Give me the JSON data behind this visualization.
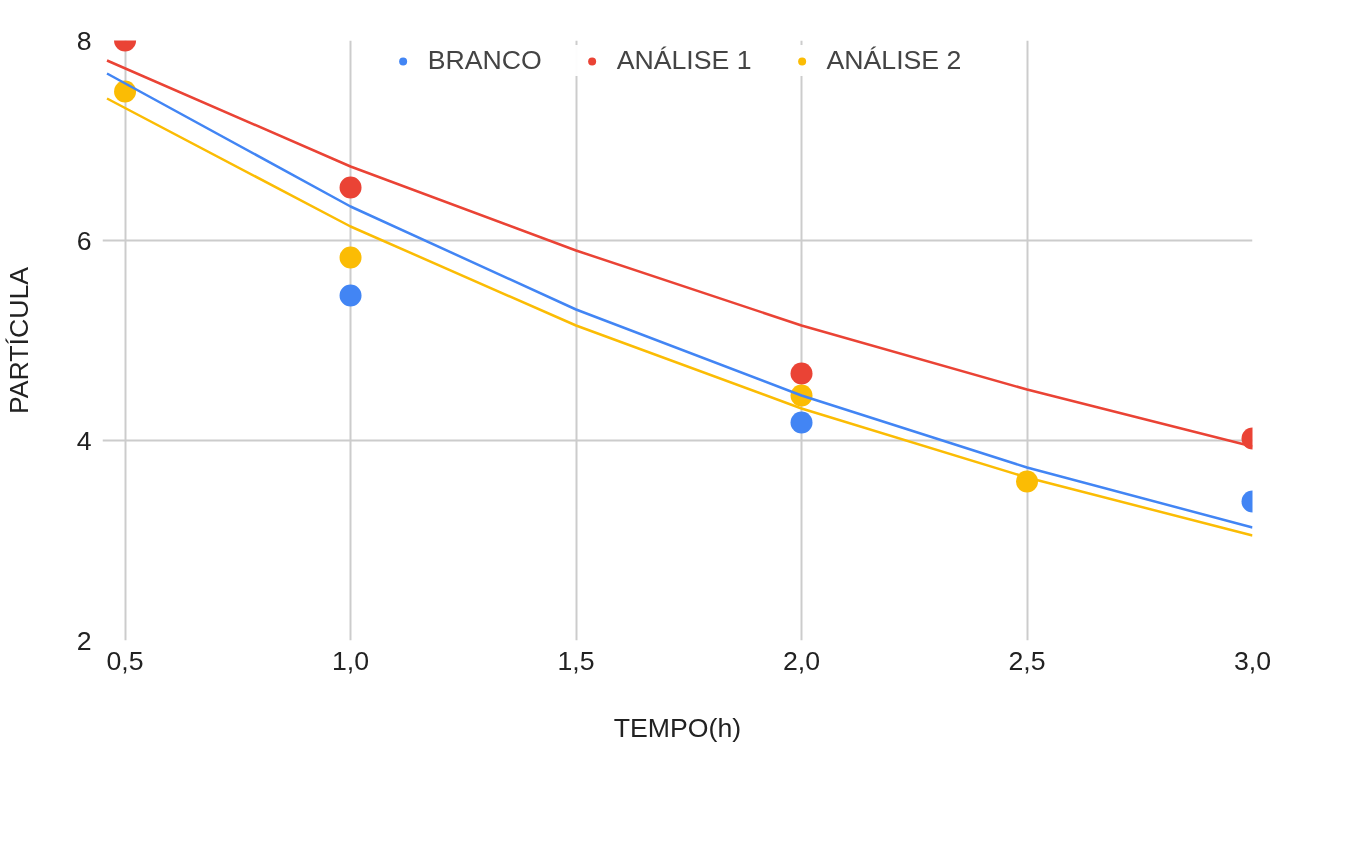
{
  "chart_data": {
    "type": "scatter",
    "xlabel": "TEMPO(h)",
    "ylabel": "PARTÍCULA",
    "xlim": [
      0.45,
      3.0
    ],
    "ylim": [
      2,
      8
    ],
    "xticks": [
      {
        "value": 0.5,
        "label": "0,5"
      },
      {
        "value": 1.0,
        "label": "1,0"
      },
      {
        "value": 1.5,
        "label": "1,5"
      },
      {
        "value": 2.0,
        "label": "2,0"
      },
      {
        "value": 2.5,
        "label": "2,5"
      },
      {
        "value": 3.0,
        "label": "3,0"
      }
    ],
    "yticks": [
      2,
      4,
      6,
      8
    ],
    "grid": true,
    "legend": "top",
    "marker": "circle",
    "series": [
      {
        "name": "BRANCO",
        "color": "#4285f4",
        "x": [
          1.0,
          2.0,
          3.0
        ],
        "values": [
          5.45,
          4.18,
          3.39
        ]
      },
      {
        "name": "ANÁLISE 1",
        "color": "#ea4335",
        "x": [
          0.5,
          1.0,
          2.0,
          3.0
        ],
        "values": [
          8.0,
          6.53,
          4.67,
          4.02
        ]
      },
      {
        "name": "ANÁLISE 2",
        "color": "#fbbc04",
        "x": [
          0.5,
          1.0,
          2.0,
          2.5
        ],
        "values": [
          7.49,
          5.83,
          4.45,
          3.59
        ]
      },
      {
        "type": "line",
        "marker": "none",
        "color": "#4285f4",
        "x": [
          0.46,
          1.0,
          1.5,
          2.0,
          2.5,
          3.0
        ],
        "values": [
          7.67,
          6.34,
          5.31,
          4.45,
          3.73,
          3.13
        ]
      },
      {
        "type": "line",
        "marker": "none",
        "color": "#ea4335",
        "x": [
          0.46,
          1.0,
          1.5,
          2.0,
          2.5,
          3.0
        ],
        "values": [
          7.8,
          6.74,
          5.9,
          5.15,
          4.51,
          3.94
        ]
      },
      {
        "type": "line",
        "marker": "none",
        "color": "#fbbc04",
        "x": [
          0.46,
          1.0,
          1.5,
          2.0,
          2.5,
          3.0
        ],
        "values": [
          7.42,
          6.14,
          5.15,
          4.32,
          3.63,
          3.05
        ]
      }
    ]
  }
}
